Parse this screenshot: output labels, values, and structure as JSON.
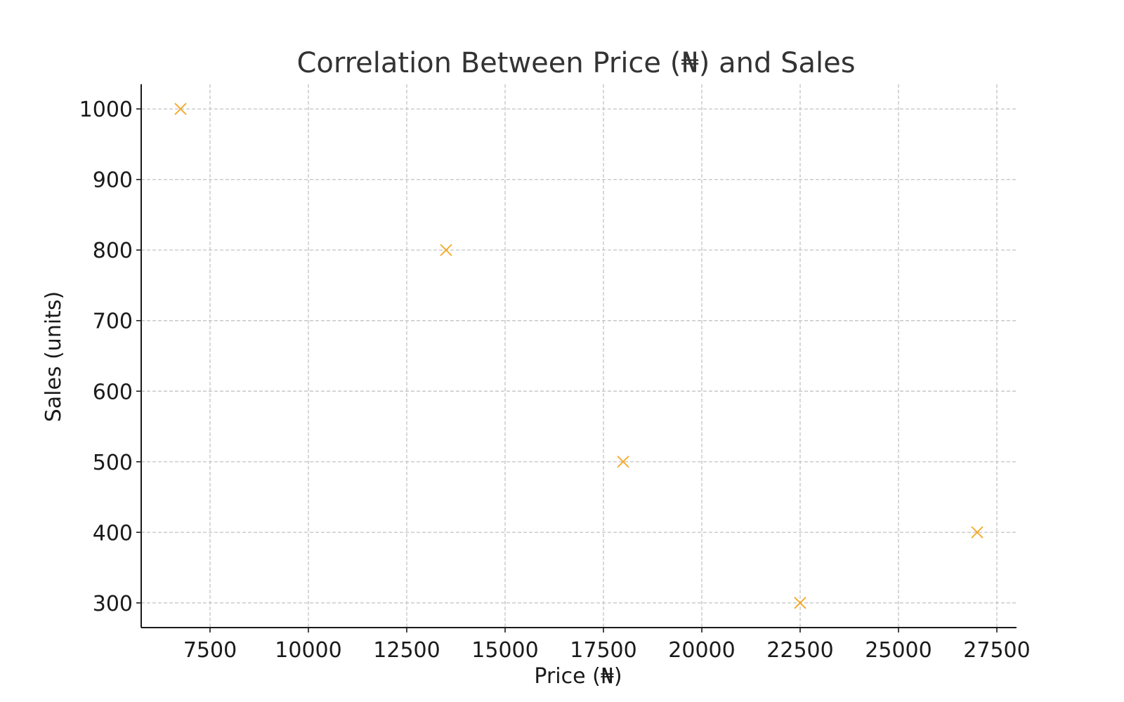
{
  "chart_data": {
    "type": "scatter",
    "title": "Correlation Between Price (₦) and Sales",
    "xlabel": "Price (₦)",
    "ylabel": "Sales (units)",
    "x": [
      6750,
      13500,
      18000,
      22500,
      27000
    ],
    "y": [
      1000,
      800,
      500,
      300,
      400
    ],
    "xlim": [
      5750,
      28000
    ],
    "ylim": [
      265,
      1035
    ],
    "xticks": [
      7500,
      10000,
      12500,
      15000,
      17500,
      20000,
      22500,
      25000,
      27500
    ],
    "yticks": [
      300,
      400,
      500,
      600,
      700,
      800,
      900,
      1000
    ],
    "marker": "x",
    "marker_color": "#f5a623",
    "grid": true,
    "legend": "none"
  }
}
